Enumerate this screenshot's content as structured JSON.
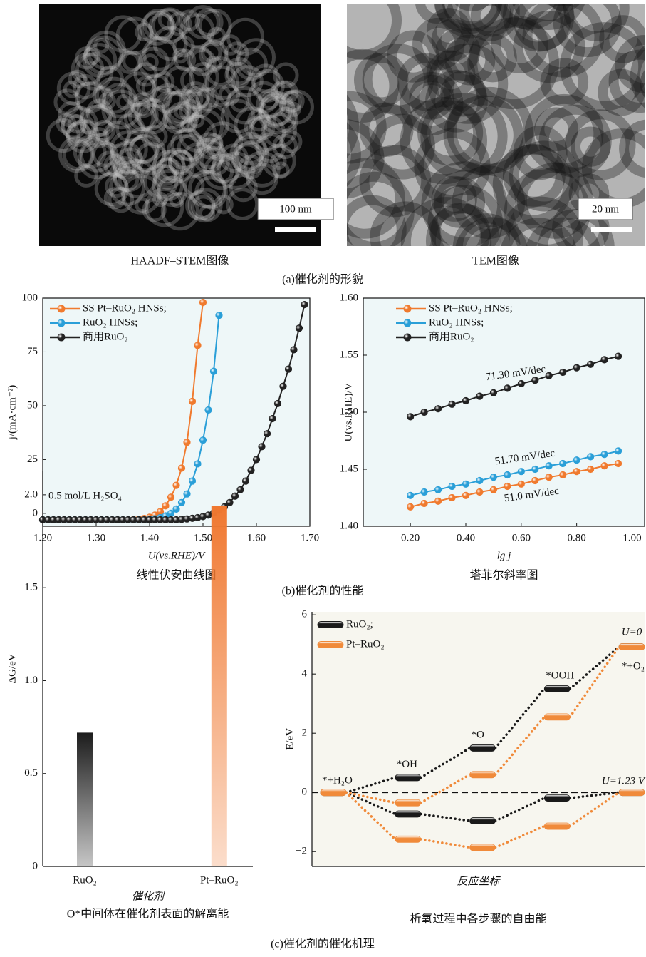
{
  "images": [
    {
      "scale_label": "100 nm",
      "caption": "HAADF–STEM图像"
    },
    {
      "scale_label": "20 nm",
      "caption": "TEM图像"
    }
  ],
  "section_captions": [
    "(a)催化剂的形貌",
    "(b)催化剂的性能",
    "(c)催化剂的催化机理"
  ],
  "chart_data": [
    {
      "type": "line",
      "caption": "线性伏安曲线图",
      "x_label": "U(vs.RHE)/V",
      "y_label": "j/(mA·cm⁻²)",
      "annotations": [
        "0.5 mol/L H₂SO₄"
      ],
      "x": [
        1.2,
        1.21,
        1.22,
        1.23,
        1.24,
        1.25,
        1.26,
        1.27,
        1.28,
        1.29,
        1.3,
        1.31,
        1.32,
        1.33,
        1.34,
        1.35,
        1.36,
        1.37,
        1.38,
        1.39,
        1.4,
        1.41,
        1.42,
        1.43,
        1.44,
        1.45,
        1.46,
        1.47,
        1.48,
        1.49,
        1.5,
        1.51,
        1.52,
        1.53,
        1.54,
        1.55,
        1.56,
        1.57,
        1.58,
        1.59,
        1.6,
        1.61,
        1.62,
        1.63,
        1.64,
        1.65,
        1.66,
        1.67,
        1.68,
        1.69,
        1.7
      ],
      "xlim": [
        1.2,
        1.7
      ],
      "xticks": [
        {
          "value": 1.2,
          "label": "1.20"
        },
        {
          "value": 1.3,
          "label": "1.30"
        },
        {
          "value": 1.4,
          "label": "1.40"
        },
        {
          "value": 1.5,
          "label": "1.50"
        },
        {
          "value": 1.6,
          "label": "1.60"
        },
        {
          "value": 1.7,
          "label": "1.70"
        }
      ],
      "ylim": [
        -6,
        100
      ],
      "yticks": [
        0,
        25,
        50,
        75,
        100
      ],
      "series": [
        {
          "name": "SS Pt–RuO₂ HNSs;",
          "color": "#f07a2e",
          "values": [
            -3,
            -3,
            -3,
            -3,
            -3,
            -3,
            -3,
            -3,
            -3,
            -3,
            -3,
            -3,
            -3,
            -3,
            -3,
            -3,
            -3,
            -2.9,
            -2.7,
            -2.4,
            -1.8,
            -0.8,
            0.8,
            3.5,
            7.5,
            13,
            21,
            33,
            52,
            78,
            98,
            null,
            null,
            null,
            null,
            null,
            null,
            null,
            null,
            null,
            null,
            null,
            null,
            null,
            null,
            null,
            null,
            null,
            null,
            null,
            null
          ]
        },
        {
          "name": "RuO₂ HNSs;",
          "color": "#2a9fd8",
          "values": [
            -3,
            -3,
            -3,
            -3,
            -3,
            -3,
            -3,
            -3,
            -3,
            -3,
            -3,
            -3,
            -3,
            -3,
            -3,
            -3,
            -3,
            -3,
            -3,
            -3,
            -2.8,
            -2.5,
            -2,
            -1.2,
            0,
            2,
            5,
            9,
            15,
            23,
            34,
            48,
            66,
            92,
            null,
            null,
            null,
            null,
            null,
            null,
            null,
            null,
            null,
            null,
            null,
            null,
            null,
            null,
            null,
            null,
            null
          ]
        },
        {
          "name": "商用RuO₂",
          "color": "#222222",
          "values": [
            -3,
            -3,
            -3,
            -3,
            -3,
            -3,
            -3,
            -3,
            -3,
            -3,
            -3,
            -3,
            -3,
            -3,
            -3,
            -3,
            -3,
            -3,
            -3,
            -3,
            -3,
            -3,
            -3,
            -3,
            -3,
            -3,
            -2.8,
            -2.6,
            -2.3,
            -2,
            -1.5,
            -0.8,
            0.2,
            1.5,
            3,
            5,
            8,
            11,
            15,
            20,
            25,
            31,
            37,
            44,
            51,
            59,
            67,
            76,
            86,
            97,
            null
          ]
        }
      ]
    },
    {
      "type": "line",
      "caption": "塔菲尔斜率图",
      "x_label": "lg j",
      "y_label": "U(vs.RHE)/V",
      "annotations": [
        "71.30 mV/dec",
        "51.70 mV/dec",
        "51.0 mV/dec"
      ],
      "x": [
        0.2,
        0.25,
        0.3,
        0.35,
        0.4,
        0.45,
        0.5,
        0.55,
        0.6,
        0.65,
        0.7,
        0.75,
        0.8,
        0.85,
        0.9,
        0.95
      ],
      "xlim": [
        0.03,
        1.045
      ],
      "xticks": [
        {
          "value": 0.2,
          "label": "0.20"
        },
        {
          "value": 0.4,
          "label": "0.40"
        },
        {
          "value": 0.6,
          "label": "0.60"
        },
        {
          "value": 0.8,
          "label": "0.80"
        },
        {
          "value": 1.0,
          "label": "1.00"
        }
      ],
      "ylim": [
        1.4,
        1.6
      ],
      "yticks": [
        {
          "value": 1.4,
          "label": "1.40"
        },
        1.45,
        {
          "value": 1.5,
          "label": "1.50"
        },
        1.55,
        {
          "value": 1.6,
          "label": "1.60"
        }
      ],
      "series": [
        {
          "name": "SS Pt–RuO₂ HNSs;",
          "color": "#f07a2e",
          "values": [
            1.417,
            1.42,
            1.422,
            1.425,
            1.427,
            1.43,
            1.432,
            1.435,
            1.437,
            1.44,
            1.443,
            1.445,
            1.448,
            1.45,
            1.453,
            1.455
          ]
        },
        {
          "name": "RuO₂ HNSs;",
          "color": "#2a9fd8",
          "values": [
            1.427,
            1.43,
            1.432,
            1.435,
            1.437,
            1.44,
            1.443,
            1.445,
            1.448,
            1.45,
            1.453,
            1.455,
            1.458,
            1.461,
            1.463,
            1.466
          ]
        },
        {
          "name": "商用RuO₂",
          "color": "#222222",
          "values": [
            1.496,
            1.5,
            1.503,
            1.507,
            1.51,
            1.514,
            1.517,
            1.521,
            1.525,
            1.528,
            1.532,
            1.535,
            1.539,
            1.542,
            1.546,
            1.549
          ]
        }
      ]
    },
    {
      "type": "bar",
      "caption": "O*中间体在催化剂表面的解离能",
      "x_label": "催化剂",
      "y_label": "ΔG/eV",
      "categories": [
        "RuO₂",
        "Pt–RuO₂"
      ],
      "values": [
        0.72,
        1.94
      ],
      "colors": [
        "#1c1c1c",
        "#f07830"
      ],
      "ylim": [
        0,
        2.13
      ],
      "yticks": [
        0,
        0.5,
        {
          "value": 1,
          "label": "1.0"
        },
        1.5,
        {
          "value": 2,
          "label": "2.0"
        }
      ]
    },
    {
      "type": "energy",
      "caption": "析氧过程中各步骤的自由能",
      "x_label": "反应坐标",
      "y_label": "E/eV",
      "categories": [
        "*+H₂O",
        "*OH",
        "*O",
        "*OOH",
        "*+O₂"
      ],
      "annotations": [
        "U=0",
        "U=1.23 V"
      ],
      "ylim": [
        -2.5,
        6.1
      ],
      "yticks": [
        {
          "value": -2,
          "label": "−2"
        },
        0,
        2,
        4,
        6
      ],
      "series": [
        {
          "name": "RuO₂;",
          "color": "#1a1a1a",
          "values": [
            0,
            0.5,
            1.5,
            3.5,
            4.92
          ],
          "values_u123": [
            0,
            -0.73,
            -0.96,
            -0.19,
            0
          ]
        },
        {
          "name": "Pt–RuO₂",
          "color": "#f08a3a",
          "values": [
            0,
            -0.35,
            0.6,
            2.55,
            4.92
          ],
          "values_u123": [
            0,
            -1.58,
            -1.86,
            -1.14,
            0
          ]
        }
      ]
    }
  ]
}
